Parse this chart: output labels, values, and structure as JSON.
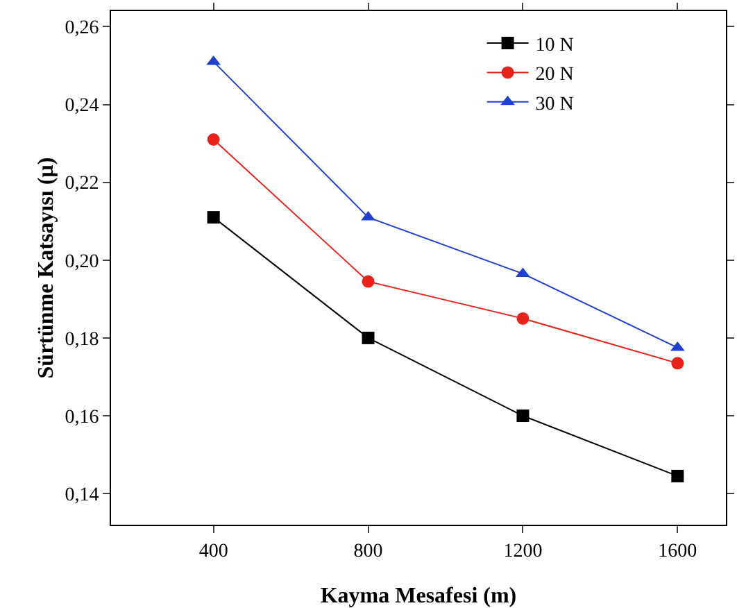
{
  "chart_data": {
    "type": "line",
    "xlabel": "Kayma Mesafesi (m)",
    "ylabel": "Sürtünme Katsayısı (µ)",
    "x": [
      400,
      800,
      1200,
      1600
    ],
    "series": [
      {
        "name": "10 N",
        "color": "#000000",
        "marker": "square",
        "values": [
          0.211,
          0.18,
          0.16,
          0.1445
        ]
      },
      {
        "name": "20 N",
        "color": "#e8231c",
        "marker": "circle",
        "values": [
          0.231,
          0.1945,
          0.185,
          0.1735
        ]
      },
      {
        "name": "30 N",
        "color": "#1f3fcf",
        "marker": "triangle",
        "values": [
          0.251,
          0.211,
          0.1965,
          0.1775
        ]
      }
    ],
    "xlim": [
      135,
      1725
    ],
    "xticks": [
      400,
      800,
      1200,
      1600
    ],
    "ylim": [
      0.132,
      0.264
    ],
    "yticks": [
      {
        "value": 0.14,
        "label": "0,14"
      },
      {
        "value": 0.16,
        "label": "0,16"
      },
      {
        "value": 0.18,
        "label": "0,18"
      },
      {
        "value": 0.2,
        "label": "0,20"
      },
      {
        "value": 0.22,
        "label": "0,22"
      },
      {
        "value": 0.24,
        "label": "0,24"
      },
      {
        "value": 0.26,
        "label": "0,26"
      }
    ],
    "grid": false,
    "legend": "top right",
    "line_style": "solid"
  }
}
